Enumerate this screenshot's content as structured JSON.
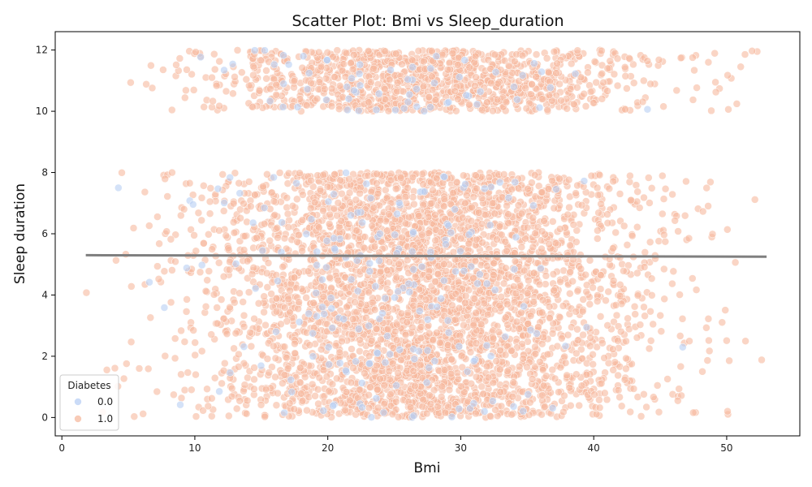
{
  "chart_data": {
    "type": "scatter",
    "title": "Scatter Plot: Bmi vs Sleep_duration",
    "xlabel": "Bmi",
    "ylabel": "Sleep duration",
    "xlim": [
      -0.5,
      55.5
    ],
    "ylim": [
      -0.6,
      12.6
    ],
    "xticks": [
      0,
      10,
      20,
      30,
      40,
      50
    ],
    "yticks": [
      0,
      2,
      4,
      6,
      8,
      10,
      12
    ],
    "grid": false,
    "legend": {
      "title": "Diabetes",
      "placement": "lower-left"
    },
    "series": [
      {
        "name": "0.0",
        "color": "#b8cff4",
        "count": 260,
        "distribution": {
          "bmi_mean": 25,
          "bmi_sd": 7,
          "sleep_bands": [
            [
              0,
              8
            ],
            [
              10,
              12
            ]
          ],
          "band_weights": [
            0.78,
            0.22
          ]
        }
      },
      {
        "name": "1.0",
        "color": "#f6b99f",
        "count": 5200,
        "distribution": {
          "bmi_mean": 27.5,
          "bmi_sd": 8.2,
          "sleep_bands": [
            [
              0,
              8
            ],
            [
              10,
              12
            ]
          ],
          "band_weights": [
            0.78,
            0.22
          ]
        }
      }
    ],
    "trendline": {
      "type": "linear",
      "color": "#7f7f7f",
      "points": [
        [
          1.8,
          5.3
        ],
        [
          53,
          5.25
        ]
      ]
    }
  }
}
